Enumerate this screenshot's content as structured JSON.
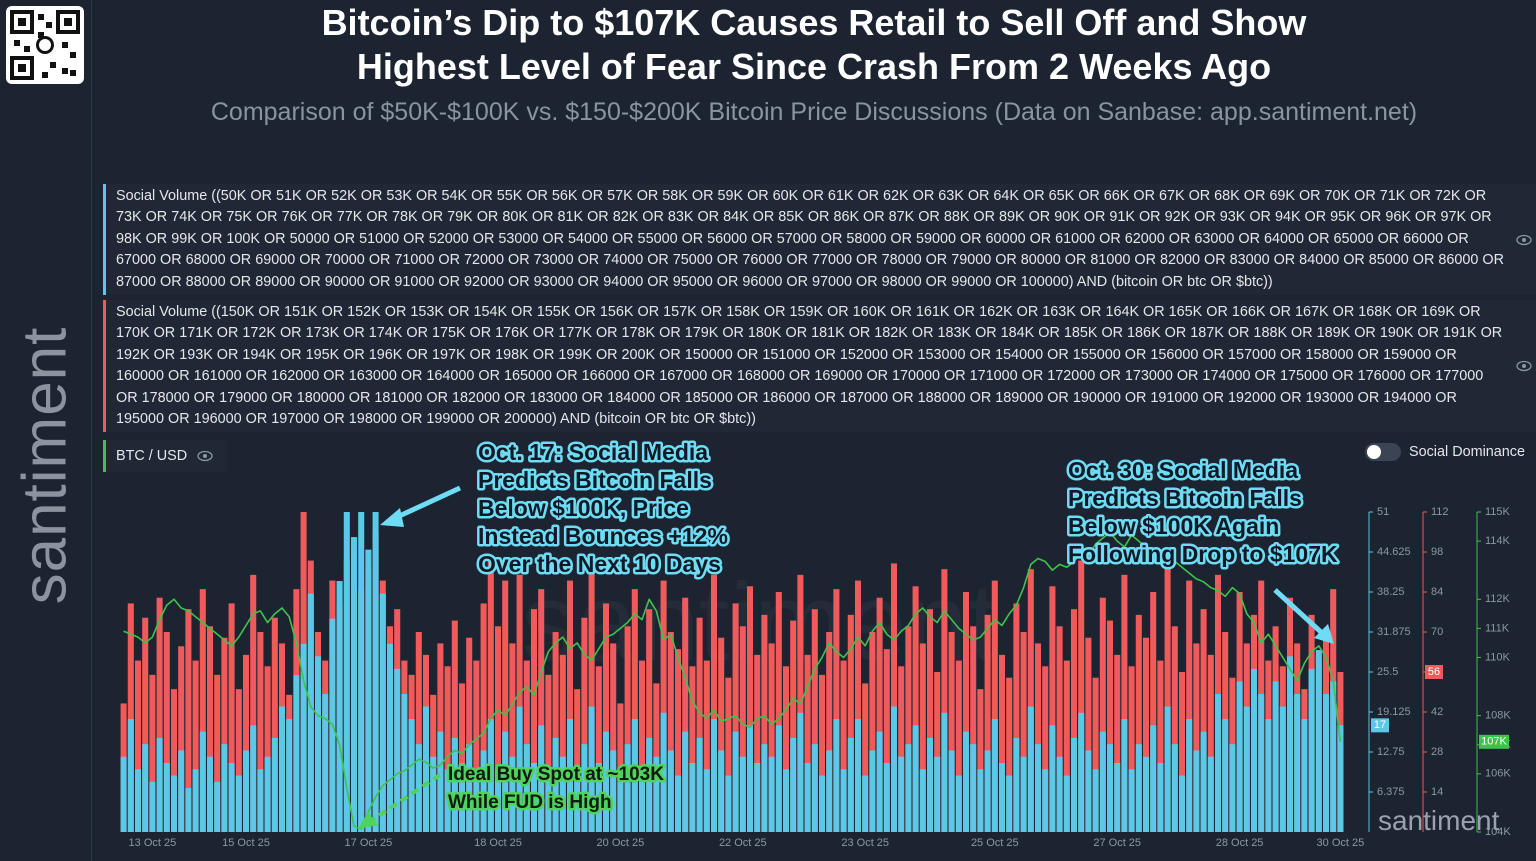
{
  "header": {
    "title_lines": [
      "Bitcoin’s Dip to $107K Causes Retail to Sell Off and Show",
      "Highest Level of Fear Since Crash From 2 Weeks Ago"
    ],
    "subtitle": "Comparison of $50K-$100K vs. $150-$200K Bitcoin Price Discussions (Data on Sanbase: app.santiment.net)",
    "brand": "santiment"
  },
  "chart_data": {
    "type": "bar",
    "toggle_label": "Social Dominance",
    "categories": [
      null,
      null,
      null,
      null,
      "13 Oct 25",
      null,
      null,
      null,
      null,
      null,
      null,
      null,
      null,
      null,
      null,
      null,
      null,
      "15 Oct 25",
      null,
      null,
      null,
      null,
      null,
      null,
      null,
      null,
      null,
      null,
      null,
      null,
      null,
      null,
      null,
      null,
      "17 Oct 25",
      null,
      null,
      null,
      null,
      null,
      null,
      null,
      null,
      null,
      null,
      null,
      null,
      null,
      null,
      null,
      null,
      null,
      "18 Oct 25",
      null,
      null,
      null,
      null,
      null,
      null,
      null,
      null,
      null,
      null,
      null,
      null,
      null,
      null,
      null,
      null,
      "20 Oct 25",
      null,
      null,
      null,
      null,
      null,
      null,
      null,
      null,
      null,
      null,
      null,
      null,
      null,
      null,
      null,
      null,
      "22 Oct 25",
      null,
      null,
      null,
      null,
      null,
      null,
      null,
      null,
      null,
      null,
      null,
      null,
      null,
      null,
      null,
      null,
      "23 Oct 25",
      null,
      null,
      null,
      null,
      null,
      null,
      null,
      null,
      null,
      null,
      null,
      null,
      null,
      null,
      null,
      null,
      null,
      "25 Oct 25",
      null,
      null,
      null,
      null,
      null,
      null,
      null,
      null,
      null,
      null,
      null,
      null,
      null,
      null,
      null,
      null,
      "27 Oct 25",
      null,
      null,
      null,
      null,
      null,
      null,
      null,
      null,
      null,
      null,
      null,
      null,
      null,
      null,
      null,
      null,
      "28 Oct 25",
      null,
      null,
      null,
      null,
      null,
      null,
      null,
      null,
      null,
      null,
      null,
      null,
      null,
      "30 Oct 25"
    ],
    "ylim": [
      0,
      51
    ],
    "yticks": [
      6.375,
      12.75,
      19.125,
      25.5,
      31.875,
      38.25,
      44.625,
      51
    ],
    "y2lim": [
      0,
      112
    ],
    "y2ticks": [
      14,
      28,
      42,
      56,
      70,
      84,
      98,
      112
    ],
    "y3lim": [
      104000,
      115000
    ],
    "y3ticks": [
      {
        "value": 104000,
        "label": "104K"
      },
      {
        "value": 106000,
        "label": "106K"
      },
      {
        "value": 107000,
        "label": "107K"
      },
      {
        "value": 108000,
        "label": "108K"
      },
      {
        "value": 110000,
        "label": "110K"
      },
      {
        "value": 111000,
        "label": "111K"
      },
      {
        "value": 112000,
        "label": "112K"
      },
      {
        "value": 114000,
        "label": "114K"
      },
      {
        "value": 115000,
        "label": "115K"
      }
    ],
    "series": [
      {
        "name": "Social Volume ((150K OR 151K OR 152K OR 153K OR 154K OR 155K OR 156K OR 157K OR 158K OR 159K OR 160K OR 161K OR 162K OR 163K OR 164K OR 165K OR 166K OR 167K OR 168K OR 169K OR 170K OR 171K OR 172K OR 173K OR 174K OR 175K OR 176K OR 177K OR 178K OR 179K OR 180K OR 181K OR 182K OR 183K OR 184K OR 185K OR 186K OR 187K OR 188K OR 189K OR 190K OR 191K OR 192K OR 193K OR 194K OR 195K OR 196K OR 197K OR 198K OR 199K OR 200K OR 150000 OR 151000 OR 152000 OR 153000 OR 154000 OR 155000 OR 156000 OR 157000 OR 158000 OR 159000 OR 160000 OR 161000 OR 162000 OR 163000 OR 164000 OR 165000 OR 166000 OR 167000 OR 168000 OR 169000 OR 170000 OR 171000 OR 172000 OR 173000 OR 174000 OR 175000 OR 176000 OR 177000 OR 178000 OR 179000 OR 180000 OR 181000 OR 182000 OR 183000 OR 184000 OR 185000 OR 186000 OR 187000 OR 188000 OR 189000 OR 190000 OR 191000 OR 192000 OR 193000 OR 194000 OR 195000 OR 196000 OR 197000 OR 198000 OR 199000 OR 200000) AND (bitcoin OR btc OR $btc))",
        "type": "bar",
        "axis": "y2",
        "color": "#f05a5a",
        "values": [
          45,
          80,
          60,
          75,
          55,
          82,
          70,
          50,
          65,
          78,
          60,
          85,
          72,
          55,
          68,
          80,
          50,
          62,
          90,
          70,
          58,
          75,
          66,
          48,
          85,
          112,
          95,
          70,
          60,
          88,
          80,
          95,
          100,
          85,
          92,
          105,
          88,
          72,
          78,
          60,
          55,
          70,
          62,
          48,
          66,
          58,
          74,
          52,
          68,
          60,
          80,
          95,
          72,
          88,
          66,
          90,
          60,
          78,
          85,
          55,
          70,
          62,
          88,
          50,
          75,
          92,
          58,
          80,
          66,
          45,
          72,
          85,
          60,
          78,
          52,
          88,
          70,
          64,
          82,
          58,
          75,
          60,
          90,
          68,
          54,
          80,
          72,
          86,
          62,
          76,
          66,
          84,
          58,
          74,
          90,
          62,
          78,
          55,
          70,
          85,
          60,
          76,
          88,
          52,
          70,
          82,
          64,
          94,
          58,
          72,
          86,
          66,
          78,
          56,
          92,
          70,
          60,
          84,
          72,
          50,
          76,
          88,
          62,
          54,
          80,
          70,
          92,
          66,
          58,
          86,
          72,
          60,
          78,
          95,
          68,
          54,
          82,
          74,
          62,
          90,
          58,
          76,
          68,
          84,
          60,
          94,
          72,
          56,
          88,
          66,
          78,
          62,
          90,
          70,
          54,
          84,
          66,
          76,
          88,
          60,
          72,
          58,
          82,
          66,
          50,
          76,
          62,
          70,
          85,
          56
        ]
      },
      {
        "name": "Social Volume ((50K OR 51K OR 52K OR 53K OR 54K OR 55K OR 56K OR 57K OR 58K OR 59K OR 60K OR 61K OR 62K OR 63K OR 64K OR 65K OR 66K OR 67K OR 68K OR 69K OR 70K OR 71K OR 72K OR 73K OR 74K OR 75K OR 76K OR 77K OR 78K OR 79K OR 80K OR 81K OR 82K OR 83K OR 84K OR 85K OR 86K OR 87K OR 88K OR 89K OR 90K OR 91K OR 92K OR 93K OR 94K OR 95K OR 96K OR 97K OR 98K OR 99K OR 100K OR 50000 OR 51000 OR 52000 OR 53000 OR 54000 OR 55000 OR 56000 OR 57000 OR 58000 OR 59000 OR 60000 OR 61000 OR 62000 OR 63000 OR 64000 OR 65000 OR 66000 OR 67000 OR 68000 OR 69000 OR 70000 OR 71000 OR 72000 OR 73000 OR 74000 OR 75000 OR 76000 OR 77000 OR 78000 OR 79000 OR 80000 OR 81000 OR 82000 OR 83000 OR 84000 OR 85000 OR 86000 OR 87000 OR 88000 OR 89000 OR 90000 OR 91000 OR 92000 OR 93000 OR 94000 OR 95000 OR 96000 OR 97000 OR 98000 OR 99000 OR 100000) AND (bitcoin OR btc OR $btc))",
        "type": "bar",
        "axis": "y",
        "color": "#5ac8e6",
        "values": [
          12,
          18,
          10,
          14,
          8,
          15,
          11,
          9,
          13,
          7,
          10,
          16,
          12,
          8,
          14,
          11,
          9,
          13,
          17,
          10,
          12,
          15,
          20,
          18,
          25,
          30,
          38,
          28,
          22,
          34,
          40,
          51,
          47,
          51,
          45,
          51,
          38,
          30,
          26,
          22,
          18,
          14,
          20,
          12,
          16,
          10,
          15,
          11,
          14,
          9,
          13,
          18,
          10,
          16,
          12,
          20,
          14,
          11,
          17,
          10,
          15,
          12,
          18,
          9,
          14,
          20,
          11,
          16,
          13,
          8,
          14,
          18,
          10,
          15,
          12,
          19,
          13,
          9,
          16,
          11,
          15,
          10,
          18,
          13,
          9,
          16,
          12,
          17,
          11,
          14,
          12,
          17,
          10,
          15,
          19,
          11,
          14,
          9,
          13,
          18,
          10,
          15,
          18,
          9,
          13,
          16,
          11,
          20,
          12,
          14,
          17,
          10,
          15,
          12,
          19,
          13,
          9,
          16,
          14,
          10,
          13,
          18,
          11,
          9,
          15,
          12,
          20,
          14,
          10,
          17,
          12,
          9,
          15,
          19,
          13,
          10,
          16,
          14,
          11,
          18,
          10,
          14,
          12,
          17,
          11,
          20,
          14,
          9,
          18,
          13,
          16,
          12,
          22,
          18,
          14,
          24,
          20,
          26,
          22,
          18,
          24,
          20,
          28,
          22,
          18,
          26,
          29,
          22,
          24,
          17
        ]
      },
      {
        "name": "BTC / USD",
        "type": "line",
        "axis": "y3",
        "color": "#3ec34a",
        "current_label": "107K",
        "values": [
          110900,
          110800,
          110700,
          110500,
          110700,
          111300,
          111800,
          112000,
          111700,
          111600,
          111400,
          111200,
          111000,
          110800,
          110600,
          110400,
          110700,
          111100,
          111500,
          111600,
          111200,
          111500,
          111700,
          111400,
          110500,
          109200,
          108300,
          108000,
          107900,
          107700,
          107000,
          105500,
          104200,
          104100,
          104700,
          105200,
          105600,
          105800,
          106000,
          106100,
          106300,
          106500,
          106400,
          106200,
          106300,
          106600,
          106800,
          106700,
          107000,
          107200,
          107400,
          107900,
          108200,
          108000,
          108400,
          108800,
          109000,
          108700,
          109500,
          110200,
          110500,
          110700,
          110300,
          110500,
          110100,
          109900,
          110300,
          110700,
          110800,
          111000,
          111200,
          111500,
          111300,
          112000,
          111600,
          110600,
          110800,
          110000,
          109300,
          108500,
          108100,
          107900,
          108200,
          107800,
          107900,
          108000,
          107700,
          107600,
          107900,
          108000,
          107700,
          107900,
          108200,
          108600,
          108400,
          109000,
          109600,
          110000,
          110500,
          110200,
          110000,
          110300,
          110700,
          110400,
          110900,
          111200,
          110800,
          110600,
          110900,
          111100,
          111500,
          111700,
          111400,
          111200,
          111600,
          111300,
          111000,
          110800,
          110600,
          110700,
          111000,
          111300,
          111100,
          111500,
          111800,
          112400,
          113200,
          113400,
          113300,
          113000,
          113200,
          113100,
          113300,
          113600,
          113500,
          113900,
          114100,
          114300,
          114000,
          113800,
          114200,
          114000,
          113800,
          113600,
          113700,
          113500,
          113300,
          113100,
          112900,
          112700,
          112600,
          112400,
          112300,
          112100,
          112400,
          112200,
          111500,
          111200,
          110500,
          110800,
          110400,
          110000,
          109600,
          109200,
          109800,
          110200,
          110400,
          110000,
          109200,
          107100
        ]
      }
    ],
    "annotations": [
      {
        "lines": [
          "Oct. 17: Social Media",
          "Predicts Bitcoin Falls",
          "Below $100K, Price",
          "Instead Bounces +12%",
          "Over the Next 10 Days"
        ]
      },
      {
        "lines": [
          "Oct. 30: Social Media",
          "Predicts Bitcoin Falls",
          "Below $100K Again",
          "Following Drop to $107K"
        ]
      },
      {
        "lines": [
          "Ideal Buy Spot at ~103K",
          "While FUD is High"
        ]
      }
    ]
  }
}
